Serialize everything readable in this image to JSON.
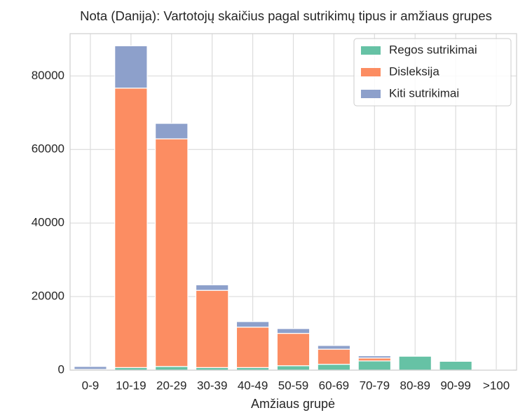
{
  "chart_data": {
    "type": "stacked_bar",
    "title": "Nota (Danija): Vartotojų skaičius pagal sutrikimų tipus ir amžiaus grupes",
    "x_label": "Amžiaus grupė",
    "categories": [
      "0-9",
      "10-19",
      "20-29",
      "30-39",
      "40-49",
      "50-59",
      "60-69",
      "70-79",
      "80-89",
      "90-99",
      ">100"
    ],
    "series": [
      {
        "name": "Regos sutrikimai",
        "color": "#66c2a5",
        "values": [
          100,
          700,
          1000,
          700,
          700,
          1200,
          1600,
          2500,
          3800,
          2400,
          100
        ]
      },
      {
        "name": "Disleksija",
        "color": "#fc8d62",
        "values": [
          100,
          76000,
          61900,
          21000,
          11000,
          8800,
          4100,
          800,
          100,
          0,
          0
        ]
      },
      {
        "name": "Kiti sutrikimai",
        "color": "#8da0cb",
        "values": [
          800,
          11500,
          4200,
          1500,
          1500,
          1300,
          1000,
          600,
          100,
          0,
          0
        ]
      }
    ],
    "ylim": [
      0,
      91500
    ],
    "yticks": [
      0,
      20000,
      40000,
      60000,
      80000
    ],
    "grid": true,
    "legend": "upper right"
  }
}
